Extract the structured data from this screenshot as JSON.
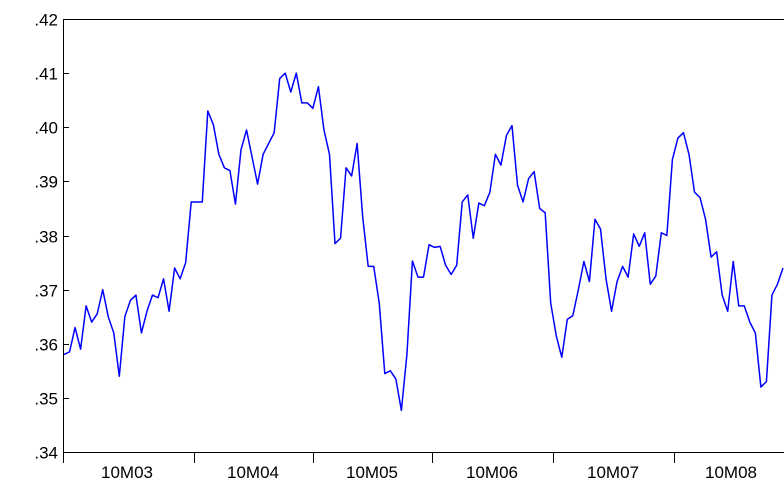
{
  "chart_data": {
    "type": "line",
    "title": "",
    "xlabel": "",
    "ylabel": "",
    "ylim": [
      0.34,
      0.42
    ],
    "y_ticks": [
      ".34",
      ".35",
      ".36",
      ".37",
      ".38",
      ".39",
      ".40",
      ".41",
      ".42"
    ],
    "y_tick_values": [
      0.34,
      0.35,
      0.36,
      0.37,
      0.38,
      0.39,
      0.4,
      0.41,
      0.42
    ],
    "x_tick_labels": [
      "10M03",
      "10M04",
      "10M05",
      "10M06",
      "10M07",
      "10M08"
    ],
    "grid": false,
    "legend": "none",
    "line_color": "#0000ff",
    "series": [
      {
        "values": [
          0.358,
          0.3585,
          0.363,
          0.359,
          0.367,
          0.364,
          0.3655,
          0.37,
          0.365,
          0.362,
          0.354,
          0.365,
          0.368,
          0.369,
          0.362,
          0.366,
          0.369,
          0.3685,
          0.372,
          0.366,
          0.374,
          0.372,
          0.375,
          0.3862,
          0.3862,
          0.3862,
          0.403,
          0.4005,
          0.395,
          0.3925,
          0.392,
          0.3858,
          0.3958,
          0.3995,
          0.3945,
          0.3895,
          0.395,
          0.397,
          0.399,
          0.409,
          0.41,
          0.4065,
          0.41,
          0.4045,
          0.4045,
          0.4035,
          0.4075,
          0.3995,
          0.395,
          0.3785,
          0.3795,
          0.3925,
          0.391,
          0.397,
          0.3835,
          0.3743,
          0.3743,
          0.3675,
          0.3545,
          0.355,
          0.3535,
          0.3477,
          0.358,
          0.3753,
          0.3723,
          0.3723,
          0.3783,
          0.3778,
          0.378,
          0.3745,
          0.3728,
          0.3745,
          0.3862,
          0.3875,
          0.3795,
          0.386,
          0.3855,
          0.388,
          0.395,
          0.393,
          0.3985,
          0.4003,
          0.3893,
          0.3862,
          0.3905,
          0.3918,
          0.385,
          0.3842,
          0.3675,
          0.3615,
          0.3575,
          0.3645,
          0.3652,
          0.37,
          0.3752,
          0.3715,
          0.383,
          0.3812,
          0.372,
          0.366,
          0.3715,
          0.3743,
          0.3723,
          0.3803,
          0.378,
          0.3805,
          0.371,
          0.3725,
          0.3805,
          0.38,
          0.394,
          0.398,
          0.399,
          0.395,
          0.388,
          0.387,
          0.383,
          0.376,
          0.377,
          0.369,
          0.366,
          0.3752,
          0.367,
          0.367,
          0.364,
          0.362,
          0.352,
          0.353,
          0.369,
          0.371,
          0.374
        ]
      }
    ]
  }
}
